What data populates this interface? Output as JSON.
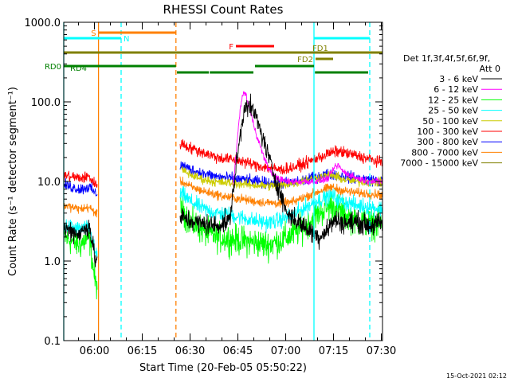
{
  "chart_data": {
    "type": "line",
    "title": "RHESSI Count Rates",
    "xlabel": "Start Time (20-Feb-05 05:50:22)",
    "ylabel": "Count Rate (s⁻¹ detector segment⁻¹)",
    "yscale": "log",
    "xlim_minutes": [
      0,
      100
    ],
    "ylim": [
      0.1,
      1000
    ],
    "x_ticks": [
      {
        "m": 9.633,
        "label": "06:00"
      },
      {
        "m": 24.633,
        "label": "06:15"
      },
      {
        "m": 39.633,
        "label": "06:30"
      },
      {
        "m": 54.633,
        "label": "06:45"
      },
      {
        "m": 69.633,
        "label": "07:00"
      },
      {
        "m": 84.633,
        "label": "07:15"
      },
      {
        "m": 99.633,
        "label": "07:30"
      }
    ],
    "y_ticks": [
      {
        "v": 1000,
        "label": "1000.0"
      },
      {
        "v": 100,
        "label": "100.0"
      },
      {
        "v": 10,
        "label": "10.0"
      },
      {
        "v": 1,
        "label": "1.0"
      },
      {
        "v": 0.1,
        "label": "0.1"
      }
    ],
    "legend": {
      "position": "right",
      "header1": "Det 1f,3f,4f,5f,6f,9f,",
      "header2": "Att 0",
      "entries": [
        "3 - 6 keV",
        "6 - 12 keV",
        "12 - 25 keV",
        "25 - 50 keV",
        "50 - 100 keV",
        "100 - 300 keV",
        "300 - 800 keV",
        "800 - 7000 keV",
        "7000 - 15000 keV"
      ]
    },
    "series": [
      {
        "name": "3 - 6 keV",
        "color": "#000000",
        "noise": 0.09,
        "points": [
          [
            0,
            2.6
          ],
          [
            5,
            2.2
          ],
          [
            8,
            2.8
          ],
          [
            10,
            1.0
          ],
          [
            37,
            3.5
          ],
          [
            42,
            3.0
          ],
          [
            48,
            2.8
          ],
          [
            52,
            3.2
          ],
          [
            55,
            30
          ],
          [
            57,
            100
          ],
          [
            60,
            70
          ],
          [
            63,
            30
          ],
          [
            66,
            12
          ],
          [
            70,
            4.0
          ],
          [
            76,
            2.6
          ],
          [
            80,
            2.0
          ],
          [
            83,
            2.6
          ],
          [
            85,
            3.3
          ],
          [
            88,
            3.0
          ],
          [
            92,
            3.1
          ],
          [
            96,
            2.8
          ],
          [
            100,
            3.0
          ]
        ]
      },
      {
        "name": "6 - 12 keV",
        "color": "#ff00ff",
        "noise": 0.03,
        "points": [
          [
            53,
            9
          ],
          [
            54,
            20
          ],
          [
            55,
            60
          ],
          [
            56,
            120
          ],
          [
            57,
            130
          ],
          [
            58,
            90
          ],
          [
            60,
            45
          ],
          [
            62,
            25
          ],
          [
            64,
            15
          ],
          [
            66,
            12
          ],
          [
            68,
            10.5
          ],
          [
            70,
            10
          ],
          [
            72,
            10
          ],
          [
            76,
            10
          ],
          [
            80,
            10
          ],
          [
            83,
            11
          ],
          [
            85,
            15
          ],
          [
            86,
            16
          ],
          [
            88,
            13
          ],
          [
            92,
            11
          ],
          [
            96,
            10
          ],
          [
            100,
            10
          ]
        ]
      },
      {
        "name": "12 - 25 keV",
        "color": "#00ff00",
        "noise": 0.13,
        "points": [
          [
            0,
            2.0
          ],
          [
            5,
            1.6
          ],
          [
            8,
            2.0
          ],
          [
            10,
            0.5
          ],
          [
            37,
            4.5
          ],
          [
            40,
            3.0
          ],
          [
            44,
            2.4
          ],
          [
            48,
            2.0
          ],
          [
            52,
            1.9
          ],
          [
            56,
            1.8
          ],
          [
            60,
            1.7
          ],
          [
            64,
            1.6
          ],
          [
            68,
            1.8
          ],
          [
            72,
            2.2
          ],
          [
            76,
            2.8
          ],
          [
            80,
            4.0
          ],
          [
            84,
            5.0
          ],
          [
            86,
            4.5
          ],
          [
            88,
            3.8
          ],
          [
            92,
            3.2
          ],
          [
            96,
            3.0
          ],
          [
            100,
            2.8
          ]
        ]
      },
      {
        "name": "25 - 50 keV",
        "color": "#00ffff",
        "noise": 0.07,
        "points": [
          [
            0,
            2.8
          ],
          [
            5,
            2.5
          ],
          [
            8,
            2.6
          ],
          [
            10,
            1.2
          ],
          [
            37,
            7.0
          ],
          [
            40,
            5.5
          ],
          [
            44,
            4.5
          ],
          [
            48,
            4.0
          ],
          [
            52,
            3.8
          ],
          [
            56,
            3.5
          ],
          [
            60,
            3.2
          ],
          [
            64,
            3.0
          ],
          [
            68,
            3.3
          ],
          [
            72,
            3.8
          ],
          [
            76,
            4.8
          ],
          [
            80,
            5.8
          ],
          [
            84,
            6.8
          ],
          [
            86,
            6.0
          ],
          [
            88,
            5.5
          ],
          [
            92,
            5.0
          ],
          [
            96,
            4.8
          ],
          [
            100,
            4.5
          ]
        ]
      },
      {
        "name": "50 - 100 keV",
        "color": "#cccc00",
        "noise": 0.04,
        "points": [
          [
            37,
            14
          ],
          [
            40,
            12
          ],
          [
            44,
            10.5
          ],
          [
            48,
            9.8
          ],
          [
            52,
            9.6
          ],
          [
            56,
            9.3
          ],
          [
            60,
            9.0
          ],
          [
            64,
            8.8
          ],
          [
            68,
            9.0
          ],
          [
            72,
            9.5
          ],
          [
            76,
            10.5
          ],
          [
            80,
            11.2
          ],
          [
            84,
            12.2
          ],
          [
            86,
            11.2
          ],
          [
            88,
            10.5
          ],
          [
            92,
            10.0
          ],
          [
            96,
            9.8
          ],
          [
            100,
            9.6
          ]
        ]
      },
      {
        "name": "100 - 300 keV",
        "color": "#ff0000",
        "noise": 0.05,
        "points": [
          [
            0,
            12
          ],
          [
            5,
            11
          ],
          [
            8,
            11.5
          ],
          [
            10,
            9
          ],
          [
            37,
            30
          ],
          [
            40,
            26
          ],
          [
            44,
            23
          ],
          [
            48,
            20
          ],
          [
            52,
            19
          ],
          [
            56,
            18
          ],
          [
            60,
            16
          ],
          [
            64,
            15
          ],
          [
            68,
            14
          ],
          [
            72,
            15
          ],
          [
            76,
            17
          ],
          [
            80,
            20
          ],
          [
            84,
            23
          ],
          [
            86,
            24
          ],
          [
            88,
            23
          ],
          [
            92,
            21
          ],
          [
            96,
            19
          ],
          [
            100,
            17
          ]
        ]
      },
      {
        "name": "300 - 800 keV",
        "color": "#0000ff",
        "noise": 0.05,
        "points": [
          [
            0,
            9
          ],
          [
            5,
            8
          ],
          [
            8,
            8.5
          ],
          [
            10,
            7
          ],
          [
            37,
            16
          ],
          [
            40,
            14
          ],
          [
            44,
            12.5
          ],
          [
            48,
            11.5
          ],
          [
            52,
            11
          ],
          [
            56,
            10.5
          ],
          [
            60,
            10
          ],
          [
            64,
            9.6
          ],
          [
            68,
            9.4
          ],
          [
            72,
            9.6
          ],
          [
            76,
            10.5
          ],
          [
            80,
            11.5
          ],
          [
            84,
            12.5
          ],
          [
            86,
            12
          ],
          [
            88,
            11.5
          ],
          [
            92,
            11
          ],
          [
            96,
            10.5
          ],
          [
            100,
            10
          ]
        ]
      },
      {
        "name": "800 - 7000 keV",
        "color": "#ff8000",
        "noise": 0.04,
        "points": [
          [
            0,
            5
          ],
          [
            5,
            4.5
          ],
          [
            8,
            4.7
          ],
          [
            10,
            4
          ],
          [
            37,
            10
          ],
          [
            40,
            8.5
          ],
          [
            44,
            7.5
          ],
          [
            48,
            6.8
          ],
          [
            52,
            6.3
          ],
          [
            56,
            6
          ],
          [
            60,
            5.6
          ],
          [
            64,
            5.4
          ],
          [
            68,
            5.3
          ],
          [
            72,
            5.5
          ],
          [
            76,
            6.5
          ],
          [
            80,
            7.5
          ],
          [
            84,
            8.5
          ],
          [
            86,
            8
          ],
          [
            88,
            7.6
          ],
          [
            92,
            7.2
          ],
          [
            96,
            7
          ],
          [
            100,
            6.8
          ]
        ]
      },
      {
        "name": "7000 - 15000 keV",
        "color": "#808000",
        "noise": 0.0,
        "points": []
      }
    ],
    "gaps": [
      [
        10.5,
        36.5
      ]
    ],
    "vertical_lines": [
      {
        "m": 0,
        "color": "#00ffff",
        "style": "solid"
      },
      {
        "m": 10.9,
        "color": "#ff8000",
        "style": "solid"
      },
      {
        "m": 18.0,
        "color": "#00ffff",
        "style": "dashed"
      },
      {
        "m": 35.2,
        "color": "#ff8000",
        "style": "dashed"
      },
      {
        "m": 78.5,
        "color": "#00ffff",
        "style": "solid"
      },
      {
        "m": 96.0,
        "color": "#00ffff",
        "style": "dashed"
      }
    ],
    "flag_bars": [
      {
        "label": "S",
        "color": "#ff8000",
        "row": 1,
        "segments": [
          [
            10.9,
            35.2
          ]
        ],
        "label_side": "left"
      },
      {
        "label": "N",
        "color": "#00ffff",
        "row": 2,
        "segments": [
          [
            0,
            18.0
          ],
          [
            78.5,
            96.0
          ]
        ],
        "label_side": "right-first"
      },
      {
        "label": "F",
        "color": "#ff0000",
        "row": 3,
        "segments": [
          [
            54.0,
            66.0
          ]
        ],
        "label_side": "left"
      },
      {
        "label": "FD1",
        "color": "#808000",
        "row": 4,
        "segments": [
          [
            0,
            100
          ]
        ],
        "label_at": 78.0
      },
      {
        "label": "FD2",
        "color": "#808000",
        "row": 5,
        "segments": [
          [
            79.0,
            84.5
          ]
        ],
        "label_side": "left"
      },
      {
        "label": "RD0",
        "color": "#008000",
        "row": 6,
        "segments": [
          [
            0,
            35.2
          ],
          [
            60.0,
            78.5
          ]
        ],
        "label_side": "left"
      },
      {
        "label": "RD4",
        "color": "#008000",
        "row": 7,
        "segments": [
          [
            35.5,
            45.5
          ],
          [
            45.8,
            59.5
          ],
          [
            78.8,
            95.5
          ]
        ],
        "label_at": 2.0
      }
    ],
    "footer_date": "15-Oct-2021 02:12"
  }
}
